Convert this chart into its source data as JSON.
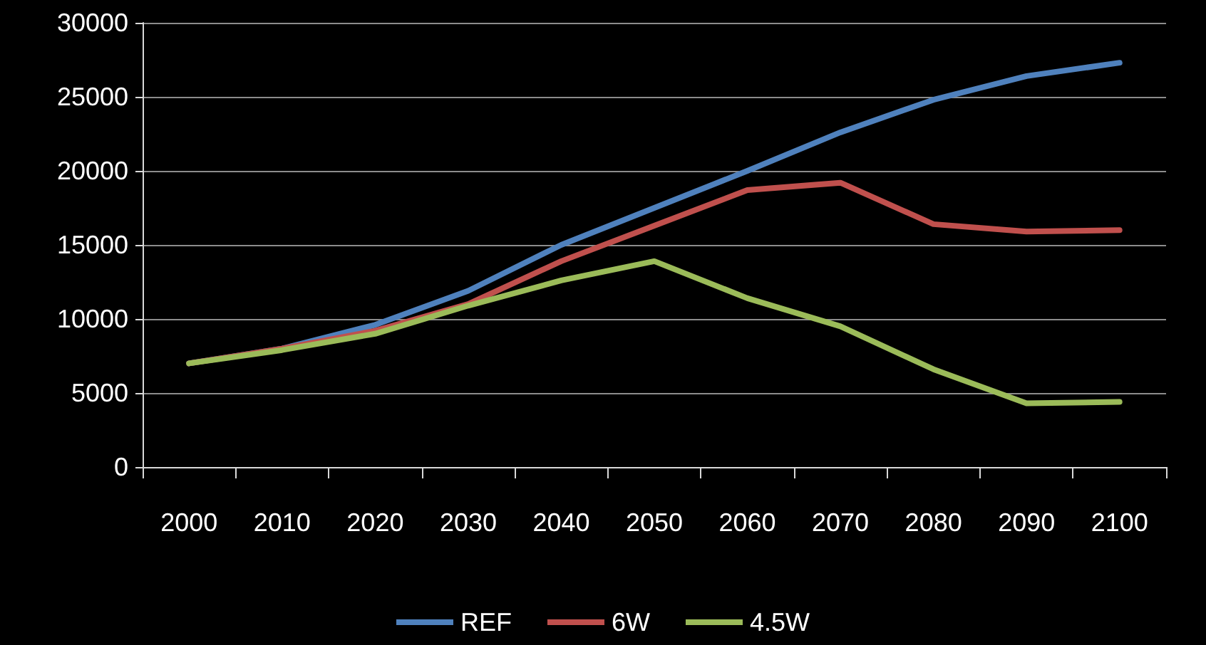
{
  "chart_data": {
    "type": "line",
    "categories": [
      "2000",
      "2010",
      "2020",
      "2030",
      "2040",
      "2050",
      "2060",
      "2070",
      "2080",
      "2090",
      "2100"
    ],
    "series": [
      {
        "name": "REF",
        "color": "#4f81bd",
        "values": [
          7000,
          8000,
          9600,
          11900,
          15000,
          17500,
          20000,
          22600,
          24800,
          26400,
          27300
        ]
      },
      {
        "name": "6W",
        "color": "#c0504d",
        "values": [
          7000,
          8000,
          9200,
          11000,
          13900,
          16300,
          18700,
          19200,
          16400,
          15900,
          16000
        ]
      },
      {
        "name": "4.5W",
        "color": "#9bbb59",
        "values": [
          7000,
          7900,
          9000,
          10900,
          12600,
          13900,
          11400,
          9500,
          6600,
          4300,
          4400
        ]
      }
    ],
    "ylim": [
      0,
      30000
    ],
    "yticks": [
      0,
      5000,
      10000,
      15000,
      20000,
      25000,
      30000
    ],
    "grid": "y",
    "legend": "bottom",
    "marker": "none",
    "line_style": "solid"
  }
}
